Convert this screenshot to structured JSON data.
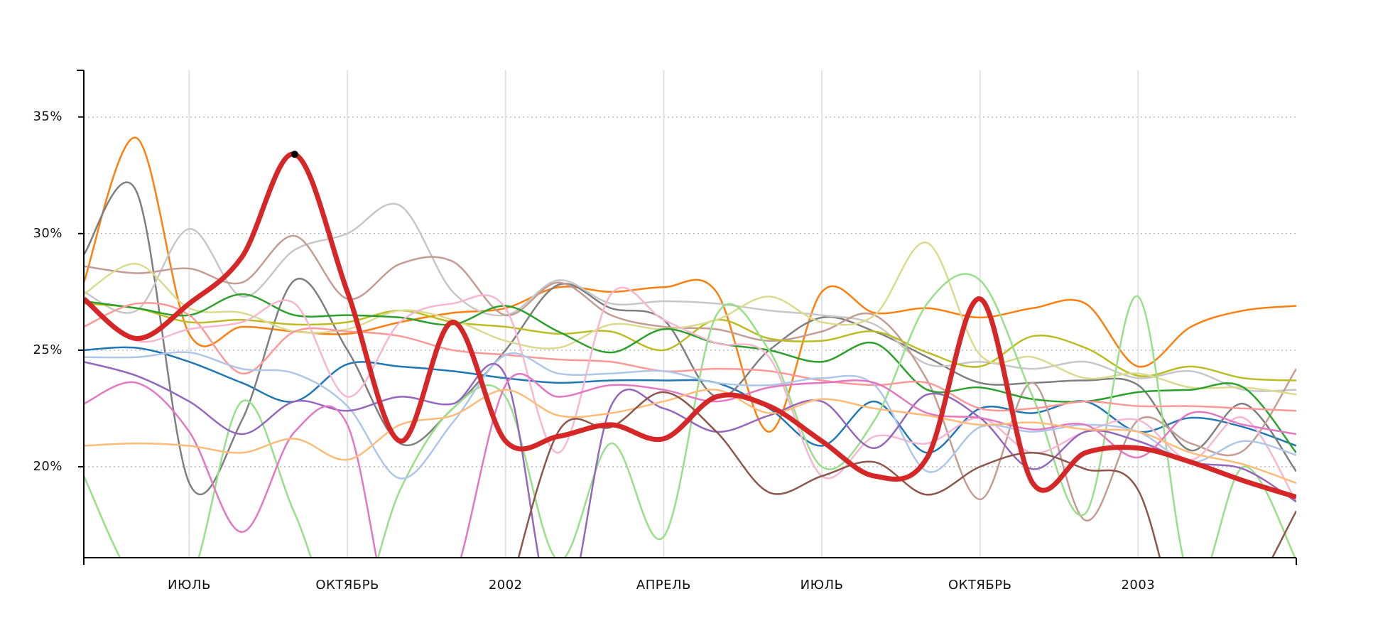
{
  "chart_data": {
    "type": "line",
    "categories": [
      null,
      null,
      "ИЮЛЬ",
      null,
      null,
      "ОКТЯБРЬ",
      null,
      null,
      "2002",
      null,
      null,
      "АПРЕЛЬ",
      null,
      null,
      "ИЮЛЬ",
      null,
      null,
      "ОКТЯБРЬ",
      null,
      null,
      "2003",
      null,
      null,
      null
    ],
    "ylim": [
      16.1,
      37
    ],
    "yticks": [
      {
        "value": 20,
        "label": "20%"
      },
      {
        "value": 25,
        "label": "25%"
      },
      {
        "value": 30,
        "label": "30%"
      },
      {
        "value": 35,
        "label": "35%"
      }
    ],
    "grid": true,
    "series": [
      {
        "color": "#ff7f0e",
        "values": [
          27.9,
          34.1,
          25.7,
          26,
          25.8,
          25.7,
          26.2,
          26.6,
          26.8,
          27.7,
          27.5,
          27.7,
          27.5,
          21.5,
          27.5,
          26.6,
          26.8,
          26.4,
          26.8,
          27,
          24.3,
          26,
          26.7,
          26.9
        ]
      },
      {
        "color": "#1f77b4",
        "values": [
          25.0,
          25.1,
          24.5,
          23.6,
          22.8,
          24.4,
          24.3,
          24.1,
          23.8,
          23.6,
          23.7,
          23.7,
          23.6,
          22.5,
          20.9,
          22.8,
          20.6,
          22.5,
          22.3,
          22.8,
          21.5,
          22.1,
          21.7,
          20.9
        ]
      },
      {
        "color": "#7f7f7f",
        "values": [
          29.1,
          31.8,
          19.3,
          22,
          28,
          25,
          21,
          22.5,
          25,
          27.8,
          26.8,
          26.3,
          23,
          25,
          26.4,
          25.8,
          24.7,
          23.6,
          23.6,
          23.7,
          23.5,
          20.7,
          22.7,
          19.8
        ]
      },
      {
        "color": "#c7c7c7",
        "values": [
          27.5,
          26.7,
          30.2,
          27.3,
          29.3,
          30,
          31.2,
          27.5,
          26.5,
          28,
          27.0,
          27.1,
          27,
          26.7,
          26.5,
          26.1,
          24.4,
          24.5,
          24.2,
          24.5,
          23.8,
          24.1,
          23.3,
          23.3
        ]
      },
      {
        "color": "#c49c94",
        "values": [
          28.6,
          28.3,
          28.5,
          27.9,
          29.9,
          27.2,
          28.7,
          28.8,
          26.5,
          27.9,
          26.5,
          26,
          25.9,
          25.4,
          25.8,
          26.5,
          23.7,
          18.6,
          23.6,
          17.7,
          22,
          21,
          20.7,
          24.2
        ]
      },
      {
        "color": "#bcbd22",
        "values": [
          27.0,
          26.8,
          26.2,
          26.3,
          26.1,
          26.2,
          26.7,
          26.2,
          26.0,
          25.7,
          25.8,
          25.0,
          26.3,
          25.5,
          25.4,
          25.8,
          24.9,
          24.3,
          25.6,
          25.1,
          23.9,
          24.3,
          23.8,
          23.7
        ]
      },
      {
        "color": "#dbdb8d",
        "values": [
          27.4,
          28.7,
          26.8,
          26.6,
          25.8,
          25.9,
          26.7,
          26.3,
          25.4,
          25.1,
          26.1,
          25.9,
          26.3,
          27.3,
          26.2,
          26.5,
          29.6,
          24.8,
          24.7,
          23.8,
          24.0,
          23.4,
          23.4,
          23.1
        ]
      },
      {
        "color": "#2ca02c",
        "values": [
          27.1,
          26.8,
          26.5,
          27.4,
          26.5,
          26.5,
          26.4,
          26.1,
          26.9,
          25.8,
          24.9,
          25.9,
          25.3,
          25.0,
          24.5,
          25.3,
          23.3,
          23.4,
          22.9,
          22.8,
          23.2,
          23.3,
          23.4,
          20.6
        ]
      },
      {
        "color": "#98df8a",
        "values": [
          19.6,
          15,
          15,
          22.8,
          18,
          13,
          19,
          22.5,
          23,
          16,
          21,
          17,
          26.5,
          25,
          20,
          22,
          27,
          28,
          23,
          18,
          27.3,
          15,
          20,
          16
        ]
      },
      {
        "color": "#ff9896",
        "values": [
          26,
          27,
          26.5,
          24,
          25.8,
          25.8,
          25.6,
          25,
          24.8,
          24.6,
          24.5,
          24.1,
          24.2,
          24.1,
          23.7,
          23.5,
          23.6,
          22.5,
          22.5,
          22.8,
          22.6,
          22.6,
          22.5,
          22.4
        ]
      },
      {
        "color": "#f7b6d2",
        "values": [
          27.2,
          25.4,
          25.9,
          26.2,
          27,
          23,
          26.2,
          27,
          26.8,
          20.6,
          27.4,
          26.3,
          25.3,
          24.7,
          19.6,
          21.3,
          21,
          22.1,
          20.6,
          21.5,
          22,
          20.3,
          22.1,
          18.5
        ]
      },
      {
        "color": "#aec7e8",
        "values": [
          24.7,
          24.7,
          24.9,
          24.2,
          24.0,
          22.6,
          19.5,
          21.9,
          24.8,
          24,
          24,
          24.1,
          23.6,
          23.5,
          23.8,
          23.5,
          19.8,
          21.7,
          21.5,
          21.8,
          21.5,
          20.2,
          21.1,
          20.5
        ]
      },
      {
        "color": "#9467bd",
        "values": [
          24.5,
          23.9,
          22.8,
          21.4,
          22.8,
          22.4,
          23,
          22.7,
          23.9,
          13,
          22.6,
          22.5,
          21.5,
          22.2,
          22.8,
          20.8,
          23.1,
          22.1,
          19.9,
          21.5,
          21.1,
          20.2,
          19.9,
          18.5
        ]
      },
      {
        "color": "#e377c2",
        "values": [
          22.7,
          23.6,
          21.5,
          17.2,
          21.5,
          21.8,
          12,
          15,
          23.5,
          23,
          23.5,
          23.3,
          22.8,
          23.4,
          23.6,
          23.6,
          22.3,
          22.1,
          21.6,
          21.8,
          20.4,
          22.3,
          21.8,
          21.4
        ]
      },
      {
        "color": "#ffbb78",
        "values": [
          20.9,
          21,
          20.9,
          20.6,
          21.2,
          20.3,
          21.8,
          22.2,
          23.3,
          22.2,
          22.3,
          22.8,
          23.3,
          22.3,
          22.9,
          22.5,
          22.2,
          21.8,
          21.9,
          21.6,
          21.5,
          20.6,
          20.1,
          19.3
        ]
      },
      {
        "color": "#8c564b",
        "values": [
          null,
          null,
          null,
          null,
          null,
          null,
          null,
          null,
          14,
          21.5,
          21.7,
          23.2,
          21.5,
          18.9,
          19.6,
          20.2,
          18.8,
          20,
          20.6,
          19.9,
          19,
          12,
          14,
          18.1
        ]
      },
      {
        "color": "#d62728",
        "highlight": true,
        "values": [
          27.2,
          25.5,
          27,
          29,
          33.4,
          27.5,
          21.1,
          26.2,
          21.1,
          21.3,
          21.8,
          21.2,
          23,
          22.6,
          21.1,
          19.6,
          20.4,
          27.2,
          19.3,
          20.6,
          20.8,
          20.2,
          19.4,
          18.7
        ]
      }
    ]
  }
}
